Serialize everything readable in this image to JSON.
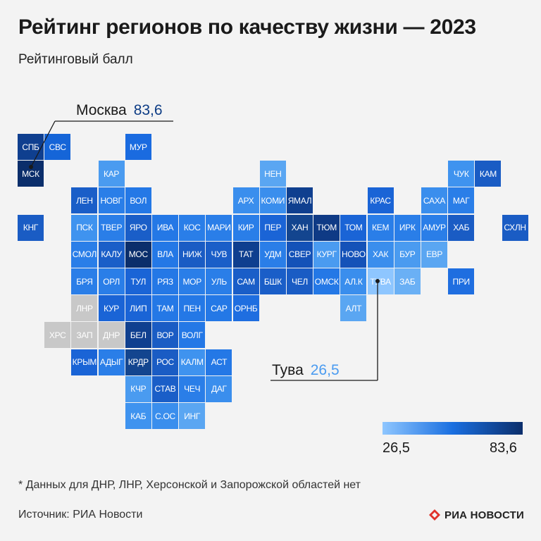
{
  "title": "Рейтинг регионов по качеству жизни — 2023",
  "subtitle": "Рейтинговый балл",
  "callouts": {
    "moscow": {
      "name": "Москва",
      "value": "83,6"
    },
    "tuva": {
      "name": "Тува",
      "value": "26,5"
    }
  },
  "legend": {
    "min_label": "26,5",
    "max_label": "83,6",
    "min": 26.5,
    "max": 83.6,
    "low_color": "#8ec6ff",
    "high_color": "#0b2e6b",
    "mid_color": "#1a6fe0"
  },
  "no_data_color": "#c8c8c8",
  "footnote": "* Данных для ДНР, ЛНР, Херсонской и Запорожской областей нет",
  "source": "Источник: РИА Новости",
  "logo": {
    "text": "РИА НОВОСТИ",
    "icon": "ria-logo-icon",
    "color": "#e0322b"
  },
  "regions": [
    {
      "label": "СПБ",
      "col": 0,
      "row": 0,
      "color": "#0f3f8f"
    },
    {
      "label": "СВС",
      "col": 1,
      "row": 0,
      "color": "#1565d8"
    },
    {
      "label": "МУР",
      "col": 4,
      "row": 0,
      "color": "#1a6be0"
    },
    {
      "label": "МСК",
      "col": 0,
      "row": 1,
      "color": "#0b2e6b"
    },
    {
      "label": "КАР",
      "col": 3,
      "row": 1,
      "color": "#4a9bf0"
    },
    {
      "label": "НЕН",
      "col": 9,
      "row": 1,
      "color": "#5aa6f2"
    },
    {
      "label": "ЧУК",
      "col": 16,
      "row": 1,
      "color": "#3f93ef"
    },
    {
      "label": "КАМ",
      "col": 17,
      "row": 1,
      "color": "#1a5cc4"
    },
    {
      "label": "ЛЕН",
      "col": 2,
      "row": 2,
      "color": "#1a5ec8"
    },
    {
      "label": "НОВГ",
      "col": 3,
      "row": 2,
      "color": "#2a7ee8"
    },
    {
      "label": "ВОЛ",
      "col": 4,
      "row": 2,
      "color": "#2478e6"
    },
    {
      "label": "АРХ",
      "col": 8,
      "row": 2,
      "color": "#3a8eed"
    },
    {
      "label": "КОМИ",
      "col": 9,
      "row": 2,
      "color": "#3a8eed"
    },
    {
      "label": "ЯМАЛ",
      "col": 10,
      "row": 2,
      "color": "#0f3f8f"
    },
    {
      "label": "КРАС",
      "col": 13,
      "row": 2,
      "color": "#1a64d6"
    },
    {
      "label": "САХА",
      "col": 15,
      "row": 2,
      "color": "#3a8eed"
    },
    {
      "label": "МАГ",
      "col": 16,
      "row": 2,
      "color": "#2a7ee8"
    },
    {
      "label": "КНГ",
      "col": 0,
      "row": 3,
      "color": "#1a5cc4"
    },
    {
      "label": "ПСК",
      "col": 2,
      "row": 3,
      "color": "#3f93ef"
    },
    {
      "label": "ТВЕР",
      "col": 3,
      "row": 3,
      "color": "#2a7ee8"
    },
    {
      "label": "ЯРО",
      "col": 4,
      "row": 3,
      "color": "#1a5ec8"
    },
    {
      "label": "ИВА",
      "col": 5,
      "row": 3,
      "color": "#2478e6"
    },
    {
      "label": "КОС",
      "col": 6,
      "row": 3,
      "color": "#2a7ee8"
    },
    {
      "label": "МАРИ",
      "col": 7,
      "row": 3,
      "color": "#2a7ee8"
    },
    {
      "label": "КИР",
      "col": 8,
      "row": 3,
      "color": "#2a7ee8"
    },
    {
      "label": "ПЕР",
      "col": 9,
      "row": 3,
      "color": "#1a64d6"
    },
    {
      "label": "ХАН",
      "col": 10,
      "row": 3,
      "color": "#13458f"
    },
    {
      "label": "ТЮМ",
      "col": 11,
      "row": 3,
      "color": "#0f3a85"
    },
    {
      "label": "ТОМ",
      "col": 12,
      "row": 3,
      "color": "#1a64d6"
    },
    {
      "label": "КЕМ",
      "col": 13,
      "row": 3,
      "color": "#2a7ee8"
    },
    {
      "label": "ИРК",
      "col": 14,
      "row": 3,
      "color": "#2a7ee8"
    },
    {
      "label": "АМУР",
      "col": 15,
      "row": 3,
      "color": "#2a7ee8"
    },
    {
      "label": "ХАБ",
      "col": 16,
      "row": 3,
      "color": "#1a5cc4"
    },
    {
      "label": "СХЛН",
      "col": 18,
      "row": 3,
      "color": "#1a5cc4"
    },
    {
      "label": "СМОЛ",
      "col": 2,
      "row": 4,
      "color": "#2a7ee8"
    },
    {
      "label": "КАЛУ",
      "col": 3,
      "row": 4,
      "color": "#1a5ec8"
    },
    {
      "label": "МОС",
      "col": 4,
      "row": 4,
      "color": "#0b2e6b"
    },
    {
      "label": "ВЛА",
      "col": 5,
      "row": 4,
      "color": "#2478e6"
    },
    {
      "label": "НИЖ",
      "col": 6,
      "row": 4,
      "color": "#1a5cc4"
    },
    {
      "label": "ЧУВ",
      "col": 7,
      "row": 4,
      "color": "#1a5ec8"
    },
    {
      "label": "ТАТ",
      "col": 8,
      "row": 4,
      "color": "#0f3f8f"
    },
    {
      "label": "УДМ",
      "col": 9,
      "row": 4,
      "color": "#2a7ee8"
    },
    {
      "label": "СВЕР",
      "col": 10,
      "row": 4,
      "color": "#1452b8"
    },
    {
      "label": "КУРГ",
      "col": 11,
      "row": 4,
      "color": "#4a9bf0"
    },
    {
      "label": "НОВО",
      "col": 12,
      "row": 4,
      "color": "#1452b8"
    },
    {
      "label": "ХАК",
      "col": 13,
      "row": 4,
      "color": "#3a8eed"
    },
    {
      "label": "БУР",
      "col": 14,
      "row": 4,
      "color": "#4a9bf0"
    },
    {
      "label": "ЕВР",
      "col": 15,
      "row": 4,
      "color": "#5aa6f2"
    },
    {
      "label": "БРЯ",
      "col": 2,
      "row": 5,
      "color": "#2a7ee8"
    },
    {
      "label": "ОРЛ",
      "col": 3,
      "row": 5,
      "color": "#2a7ee8"
    },
    {
      "label": "ТУЛ",
      "col": 4,
      "row": 5,
      "color": "#1a64d6"
    },
    {
      "label": "РЯЗ",
      "col": 5,
      "row": 5,
      "color": "#2478e6"
    },
    {
      "label": "МОР",
      "col": 6,
      "row": 5,
      "color": "#2a7ee8"
    },
    {
      "label": "УЛЬ",
      "col": 7,
      "row": 5,
      "color": "#2a7ee8"
    },
    {
      "label": "САМ",
      "col": 8,
      "row": 5,
      "color": "#1a5ec8"
    },
    {
      "label": "БШК",
      "col": 9,
      "row": 5,
      "color": "#1a5ec8"
    },
    {
      "label": "ЧЕЛ",
      "col": 10,
      "row": 5,
      "color": "#1a5cc4"
    },
    {
      "label": "ОМСК",
      "col": 11,
      "row": 5,
      "color": "#2478e6"
    },
    {
      "label": "АЛ.К",
      "col": 12,
      "row": 5,
      "color": "#3a8eed"
    },
    {
      "label": "ТУВА",
      "col": 13,
      "row": 5,
      "color": "#8ec6ff"
    },
    {
      "label": "ЗАБ",
      "col": 14,
      "row": 5,
      "color": "#6ab0f5"
    },
    {
      "label": "ПРИ",
      "col": 16,
      "row": 5,
      "color": "#1f6ee0"
    },
    {
      "label": "ЛНР",
      "col": 2,
      "row": 6,
      "color": "#c8c8c8"
    },
    {
      "label": "КУР",
      "col": 3,
      "row": 6,
      "color": "#1a64d6"
    },
    {
      "label": "ЛИП",
      "col": 4,
      "row": 6,
      "color": "#1a64d6"
    },
    {
      "label": "ТАМ",
      "col": 5,
      "row": 6,
      "color": "#2478e6"
    },
    {
      "label": "ПЕН",
      "col": 6,
      "row": 6,
      "color": "#2478e6"
    },
    {
      "label": "САР",
      "col": 7,
      "row": 6,
      "color": "#2478e6"
    },
    {
      "label": "ОРНБ",
      "col": 8,
      "row": 6,
      "color": "#1f6ee0"
    },
    {
      "label": "АЛТ",
      "col": 12,
      "row": 6,
      "color": "#5aa6f2"
    },
    {
      "label": "ХРС",
      "col": 1,
      "row": 7,
      "color": "#c8c8c8"
    },
    {
      "label": "ЗАП",
      "col": 2,
      "row": 7,
      "color": "#c8c8c8"
    },
    {
      "label": "ДНР",
      "col": 3,
      "row": 7,
      "color": "#c8c8c8"
    },
    {
      "label": "БЕЛ",
      "col": 4,
      "row": 7,
      "color": "#0f3f8f"
    },
    {
      "label": "ВОР",
      "col": 5,
      "row": 7,
      "color": "#1a5cc4"
    },
    {
      "label": "ВОЛГ",
      "col": 6,
      "row": 7,
      "color": "#2478e6"
    },
    {
      "label": "КРЫМ",
      "col": 2,
      "row": 8,
      "color": "#1a64d6"
    },
    {
      "label": "АДЫГ",
      "col": 3,
      "row": 8,
      "color": "#2a7ee8"
    },
    {
      "label": "КРДР",
      "col": 4,
      "row": 8,
      "color": "#13458f"
    },
    {
      "label": "РОС",
      "col": 5,
      "row": 8,
      "color": "#1a5cc4"
    },
    {
      "label": "КАЛМ",
      "col": 6,
      "row": 8,
      "color": "#3f93ef"
    },
    {
      "label": "АСТ",
      "col": 7,
      "row": 8,
      "color": "#2478e6"
    },
    {
      "label": "КЧР",
      "col": 4,
      "row": 9,
      "color": "#4a9bf0"
    },
    {
      "label": "СТАВ",
      "col": 5,
      "row": 9,
      "color": "#1a5ec8"
    },
    {
      "label": "ЧЕЧ",
      "col": 6,
      "row": 9,
      "color": "#2a7ee8"
    },
    {
      "label": "ДАГ",
      "col": 7,
      "row": 9,
      "color": "#3a8eed"
    },
    {
      "label": "КАБ",
      "col": 4,
      "row": 10,
      "color": "#3f93ef"
    },
    {
      "label": "С.ОС",
      "col": 5,
      "row": 10,
      "color": "#3a8eed"
    },
    {
      "label": "ИНГ",
      "col": 6,
      "row": 10,
      "color": "#5aa6f2"
    }
  ]
}
